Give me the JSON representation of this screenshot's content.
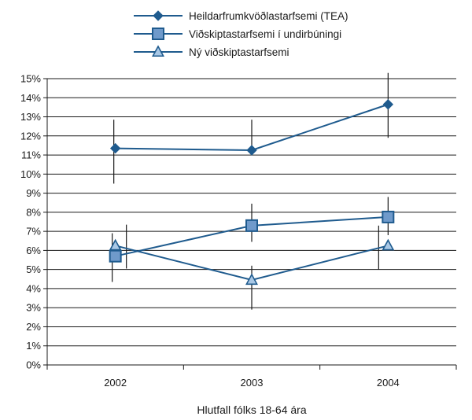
{
  "chart_data": {
    "type": "line",
    "categories": [
      "2002",
      "2003",
      "2004"
    ],
    "ylim": [
      0,
      15
    ],
    "yticks": [
      "0%",
      "1%",
      "2%",
      "3%",
      "4%",
      "5%",
      "6%",
      "7%",
      "8%",
      "9%",
      "10%",
      "11%",
      "12%",
      "13%",
      "14%",
      "15%"
    ],
    "xlabel": "Hlutfall fólks 18-64 ára",
    "ylabel": "",
    "grid": true,
    "legend_position": "top-center",
    "series": [
      {
        "name": "Heildarfrumkvöðlastarfsemi (TEA)",
        "marker": "diamond",
        "color": "#1f5b8e",
        "values": [
          11.35,
          11.25,
          13.65
        ],
        "err_low": [
          9.5,
          null,
          11.9
        ],
        "err_high": [
          12.85,
          12.85,
          15.3
        ]
      },
      {
        "name": "Viðskiptastarfsemi í undirbúningi",
        "marker": "square",
        "color": "#1f5b8e",
        "values": [
          5.7,
          7.3,
          7.75
        ],
        "err_low": [
          4.35,
          6.45,
          6.8
        ],
        "err_high": [
          6.9,
          8.45,
          8.8
        ]
      },
      {
        "name": "Ný viðskiptastarfsemi",
        "marker": "triangle",
        "color": "#1f5b8e",
        "values": [
          6.25,
          4.45,
          6.25
        ],
        "err_low": [
          5.05,
          2.9,
          5.0
        ],
        "err_high": [
          7.35,
          5.2,
          7.3
        ]
      }
    ]
  }
}
